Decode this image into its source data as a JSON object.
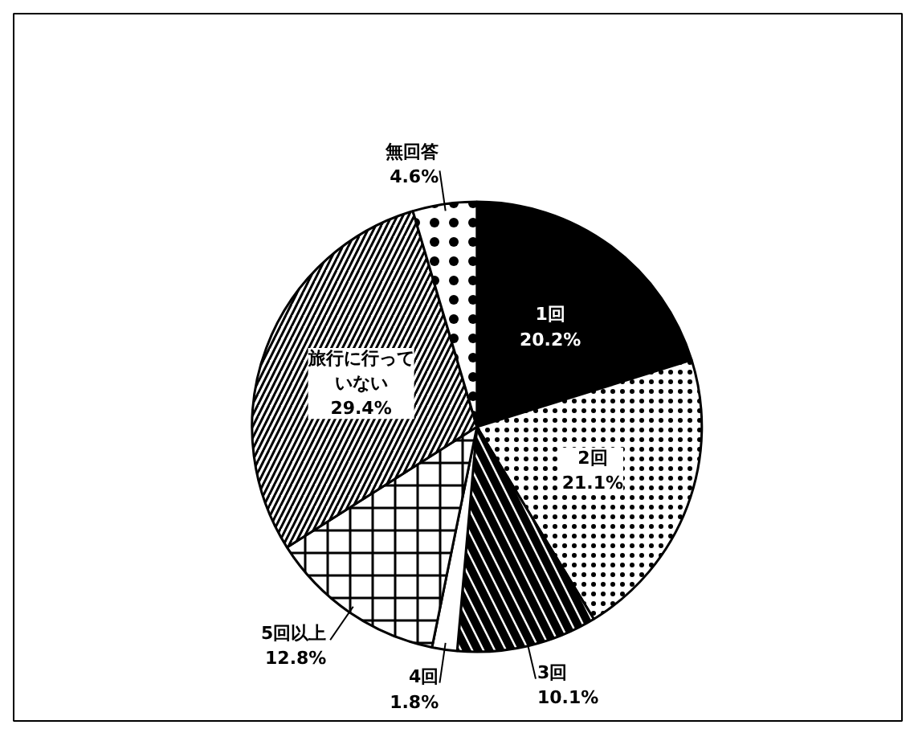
{
  "chart_data": {
    "type": "pie",
    "categories": [
      "1回",
      "2回",
      "3回",
      "4回",
      "5回以上",
      "旅行に行っていない",
      "無回答"
    ],
    "values": [
      20.2,
      21.1,
      10.1,
      1.8,
      12.8,
      29.4,
      4.6
    ],
    "colors": [
      "#000000",
      "#ffffff",
      "#ffffff",
      "#ffffff",
      "#ffffff",
      "#ffffff",
      "#ffffff"
    ],
    "value_labels": [
      "20.2%",
      "21.1%",
      "10.1%",
      "1.8%",
      "12.8%",
      "29.4%",
      "4.6%"
    ]
  }
}
